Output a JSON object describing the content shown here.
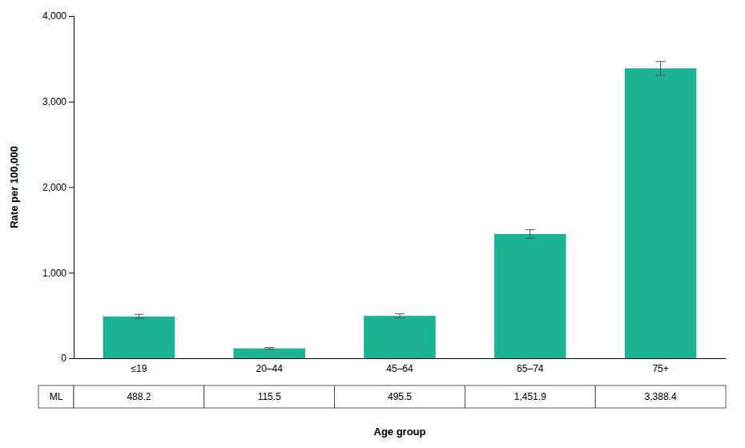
{
  "chart_data": {
    "type": "bar",
    "categories": [
      "≤19",
      "20–44",
      "45–64",
      "65–74",
      "75+"
    ],
    "values": [
      488.2,
      115.5,
      495.5,
      1451.9,
      3388.4
    ],
    "errors": [
      25,
      10,
      25,
      50,
      80
    ],
    "color": "#1ab394",
    "ylabel": "Rate per 100,000",
    "xlabel": "Age group",
    "ylim": [
      0,
      4000
    ],
    "yticks": [
      0,
      {
        "value": 1000,
        "label": "1,000"
      },
      {
        "value": 2000,
        "label": "2,000"
      },
      {
        "value": 3000,
        "label": "3,000"
      },
      {
        "value": 4000,
        "label": "4,000"
      }
    ],
    "grid": false,
    "table": {
      "row_label": "ML",
      "values": [
        "488.2",
        "115.5",
        "495.5",
        "1,451.9",
        "3,388.4"
      ]
    }
  }
}
